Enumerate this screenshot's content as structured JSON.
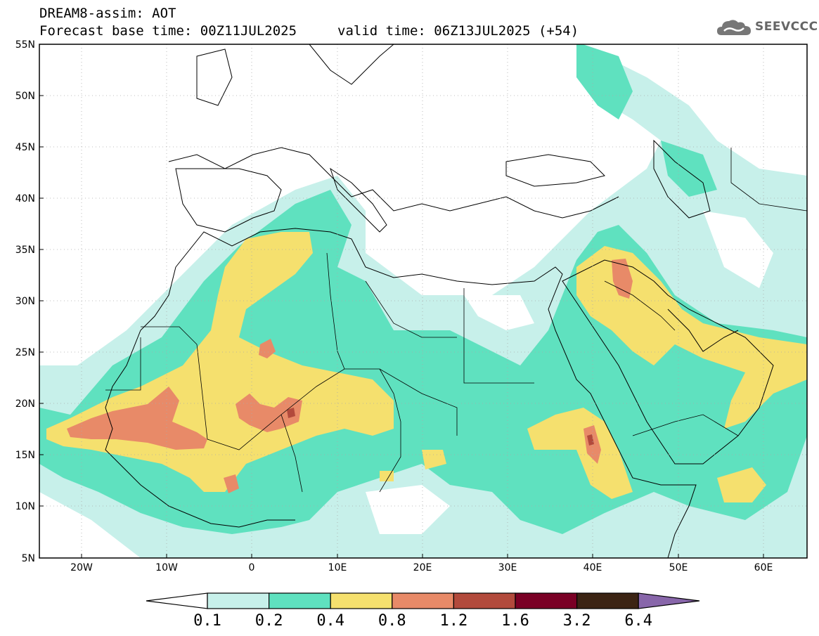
{
  "header": {
    "title": "DREAM8-assim: AOT",
    "base_time": "Forecast base time: 00Z11JUL2025",
    "valid_time": "valid time: 06Z13JUL2025 (+54)",
    "logo_text": "SEEVCCC"
  },
  "map": {
    "lat_labels": [
      "55N",
      "50N",
      "45N",
      "40N",
      "35N",
      "30N",
      "25N",
      "20N",
      "15N",
      "10N",
      "5N"
    ],
    "lon_labels": [
      "20W",
      "10W",
      "0",
      "10E",
      "20E",
      "30E",
      "40E",
      "50E",
      "60E"
    ]
  },
  "colorbar": {
    "labels": [
      "0.1",
      "0.2",
      "0.4",
      "0.8",
      "1.2",
      "1.6",
      "3.2",
      "6.4"
    ],
    "colors": [
      "#ffffff",
      "#c7f0ea",
      "#5fe1bf",
      "#f5e06e",
      "#e88a68",
      "#b24a3c",
      "#7a0025",
      "#3c2414",
      "#8866aa"
    ]
  }
}
